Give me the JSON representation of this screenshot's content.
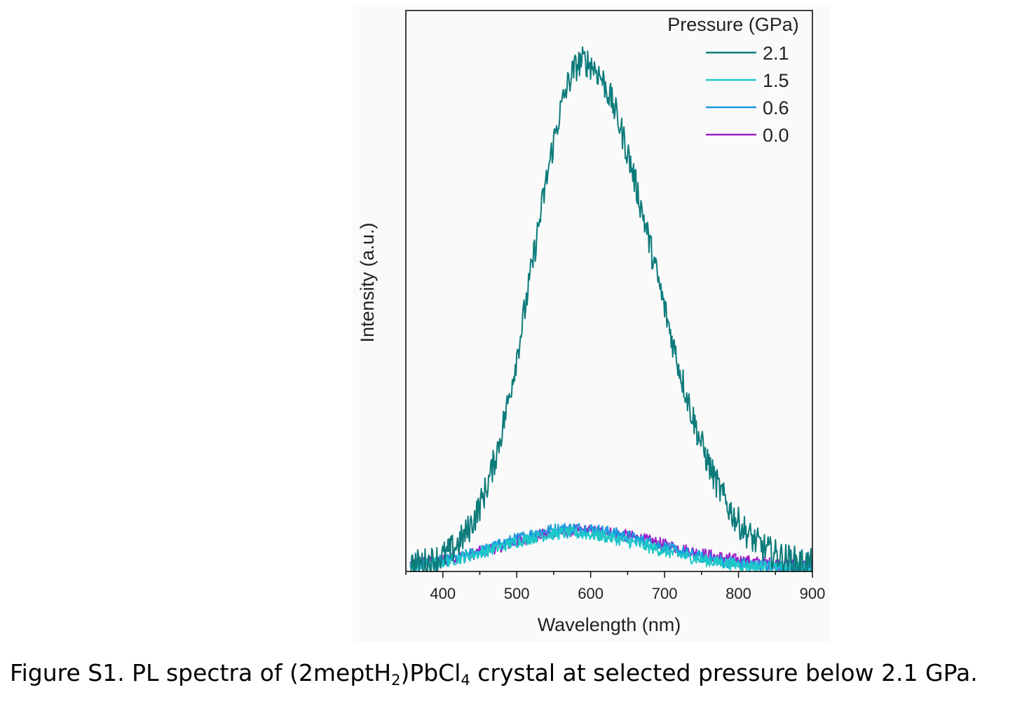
{
  "chart_data": {
    "type": "line",
    "xlabel": "Wavelength (nm)",
    "ylabel": "Intensity (a.u.)",
    "xlim": [
      350,
      900
    ],
    "ylim": [
      0,
      1.1
    ],
    "xticks": [
      "400",
      "500",
      "600",
      "700",
      "800",
      "900"
    ],
    "y_ticks_shown": false,
    "legend_title": "Pressure (GPa)",
    "legend_position": "top-right",
    "grid": false,
    "series": [
      {
        "name": "2.1",
        "color": "#0e7b7b",
        "peak_x": 590,
        "peak_y": 1.0,
        "sigma_left": 68,
        "sigma_right": 95,
        "baseline": 0.01,
        "noise": 0.03,
        "points": [
          [
            350,
            0.01
          ],
          [
            380,
            0.03
          ],
          [
            400,
            0.05
          ],
          [
            420,
            0.08
          ],
          [
            440,
            0.14
          ],
          [
            460,
            0.2
          ],
          [
            480,
            0.29
          ],
          [
            500,
            0.4
          ],
          [
            520,
            0.54
          ],
          [
            540,
            0.69
          ],
          [
            560,
            0.84
          ],
          [
            580,
            0.96
          ],
          [
            590,
            1.0
          ],
          [
            600,
            0.98
          ],
          [
            620,
            0.93
          ],
          [
            640,
            0.86
          ],
          [
            660,
            0.77
          ],
          [
            680,
            0.65
          ],
          [
            700,
            0.54
          ],
          [
            720,
            0.43
          ],
          [
            740,
            0.33
          ],
          [
            760,
            0.25
          ],
          [
            780,
            0.17
          ],
          [
            800,
            0.12
          ],
          [
            820,
            0.08
          ],
          [
            840,
            0.05
          ],
          [
            860,
            0.03
          ],
          [
            880,
            0.02
          ],
          [
            900,
            0.01
          ]
        ]
      },
      {
        "name": "1.5",
        "color": "#1ec8c8",
        "peak_x": 570,
        "peak_y": 0.075,
        "sigma_left": 95,
        "sigma_right": 110,
        "baseline": 0.005,
        "noise": 0.012
      },
      {
        "name": "0.6",
        "color": "#1a9be0",
        "peak_x": 575,
        "peak_y": 0.085,
        "sigma_left": 95,
        "sigma_right": 110,
        "baseline": 0.006,
        "noise": 0.012
      },
      {
        "name": "0.0",
        "color": "#9b1fc7",
        "peak_x": 585,
        "peak_y": 0.08,
        "sigma_left": 100,
        "sigma_right": 115,
        "baseline": 0.01,
        "noise": 0.012
      }
    ]
  },
  "caption": {
    "prefix": "Figure S1. PL spectra of (2meptH",
    "sub1": "2",
    "middle": ")PbCl",
    "sub2": "4",
    "suffix": " crystal at selected pressure below 2.1 GPa."
  }
}
